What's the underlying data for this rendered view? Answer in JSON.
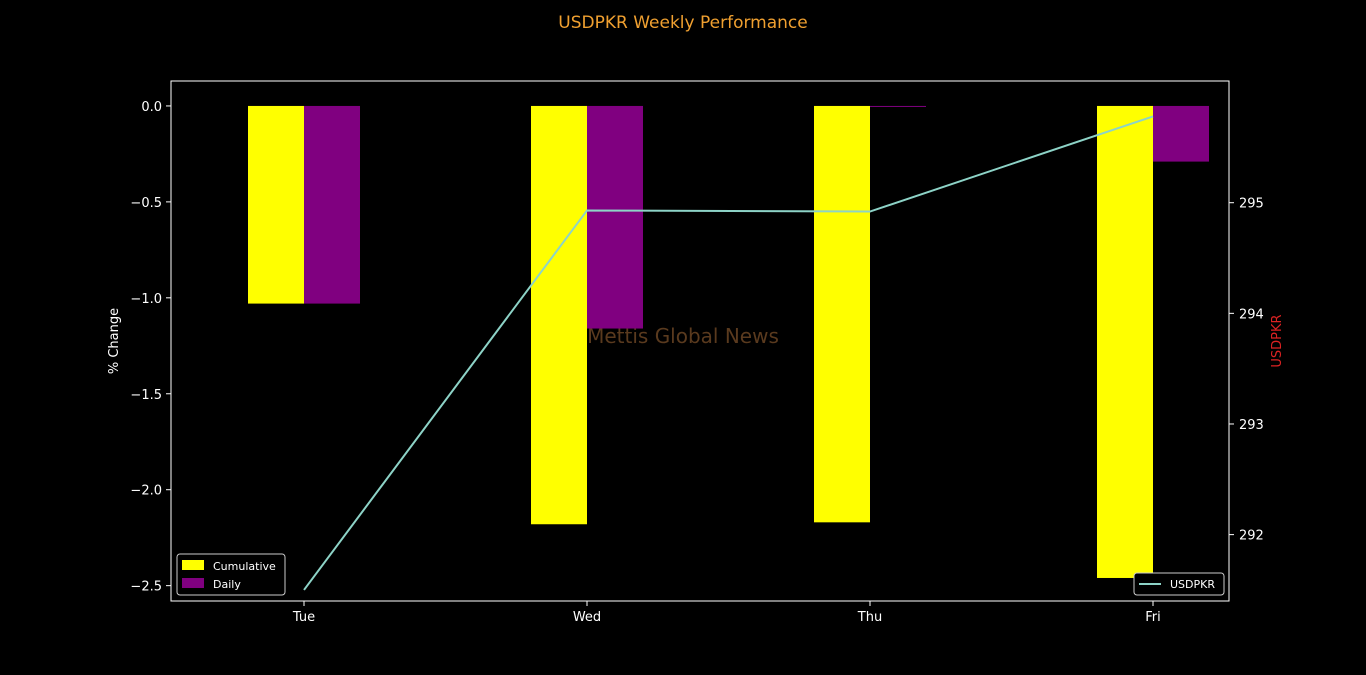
{
  "chart_data": {
    "type": "bar",
    "title": "USDPKR Weekly Performance",
    "categories": [
      "Tue",
      "Wed",
      "Thu",
      "Fri"
    ],
    "ylabel": "% Change",
    "y2label": "USDPKR",
    "ylim": [
      -2.58,
      0.13
    ],
    "y2lim": [
      291.4,
      296.1
    ],
    "yticks": [
      0.0,
      -0.5,
      -1.0,
      -1.5,
      -2.0,
      -2.5
    ],
    "ytick_labels": [
      "0.0",
      "−0.5",
      "−1.0",
      "−1.5",
      "−2.0",
      "−2.5"
    ],
    "y2ticks": [
      292,
      293,
      294,
      295
    ],
    "y2tick_labels": [
      "292",
      "293",
      "294",
      "295"
    ],
    "series": [
      {
        "name": "Cumulative",
        "kind": "bar",
        "color": "#ffff00",
        "values": [
          -1.03,
          -2.18,
          -2.17,
          -2.46
        ]
      },
      {
        "name": "Daily",
        "kind": "bar",
        "color": "#800080",
        "values": [
          -1.03,
          -1.16,
          0.0,
          -0.29
        ]
      },
      {
        "name": "USDPKR",
        "kind": "line",
        "axis": "right",
        "color": "#8dd3c7",
        "values": [
          291.5,
          294.93,
          294.92,
          295.78
        ]
      }
    ],
    "legend_left_placement": "lower-left",
    "legend_right_placement": "lower-right",
    "watermark": "Mettis Global News",
    "colors": {
      "background": "#000000",
      "axes": "#ffffff",
      "title": "#f0a030",
      "y2label": "#dd2222",
      "watermark": "#5a3a1e"
    }
  }
}
